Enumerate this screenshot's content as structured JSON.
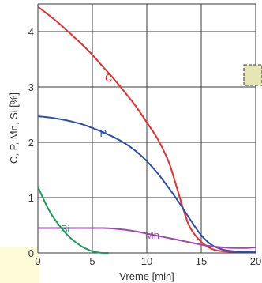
{
  "colors": {
    "C": "#e03030",
    "P": "#2c4ea8",
    "Mn": "#9b4ab0",
    "Si": "#1f9a5a",
    "overlay_box": "#e6e6b4",
    "side_highlight": "#fdfbd8"
  },
  "chart_data": {
    "type": "line",
    "title": "",
    "xlabel": "Vreme [min]",
    "ylabel": "C, P, Mn, Si [%]",
    "xlim": [
      0,
      20
    ],
    "ylim": [
      0,
      4.5
    ],
    "xticks": [
      "0",
      "5",
      "10",
      "15",
      "20"
    ],
    "yticks": [
      "0",
      "1",
      "2",
      "3",
      "4"
    ],
    "grid": true,
    "series": [
      {
        "name": "C",
        "label_at": [
          6.5,
          3.1
        ],
        "x": [
          0,
          1,
          2,
          3,
          4,
          5,
          6,
          7,
          8,
          9,
          10,
          11,
          12,
          12.5,
          13,
          13.5,
          14,
          15,
          16,
          17,
          18,
          19,
          20
        ],
        "y": [
          4.45,
          4.3,
          4.14,
          3.96,
          3.78,
          3.58,
          3.36,
          3.14,
          2.9,
          2.65,
          2.36,
          2.06,
          1.65,
          1.35,
          1.02,
          0.7,
          0.45,
          0.2,
          0.07,
          0.03,
          0.02,
          0.02,
          0.02
        ]
      },
      {
        "name": "P",
        "label_at": [
          6.0,
          2.1
        ],
        "x": [
          0,
          1,
          2,
          3,
          4,
          5,
          6,
          7,
          8,
          9,
          10,
          11,
          12,
          13,
          14,
          15,
          16,
          17,
          18,
          19,
          20
        ],
        "y": [
          2.47,
          2.45,
          2.42,
          2.38,
          2.33,
          2.26,
          2.18,
          2.09,
          1.98,
          1.84,
          1.66,
          1.44,
          1.18,
          0.9,
          0.6,
          0.32,
          0.14,
          0.06,
          0.03,
          0.02,
          0.02
        ]
      },
      {
        "name": "Mn",
        "label_at": [
          10.5,
          0.26
        ],
        "x": [
          0,
          2,
          4,
          6,
          7,
          8,
          9,
          10,
          11,
          12,
          13,
          14,
          15,
          16,
          17,
          18,
          19,
          20
        ],
        "y": [
          0.45,
          0.45,
          0.45,
          0.45,
          0.44,
          0.42,
          0.39,
          0.35,
          0.31,
          0.27,
          0.23,
          0.19,
          0.15,
          0.12,
          0.1,
          0.09,
          0.09,
          0.1
        ]
      },
      {
        "name": "Si",
        "label_at": [
          2.5,
          0.37
        ],
        "x": [
          0,
          0.5,
          1,
          1.5,
          2,
          2.5,
          3,
          3.5,
          4,
          4.5,
          5,
          5.5,
          6,
          6.5
        ],
        "y": [
          1.2,
          0.98,
          0.78,
          0.62,
          0.49,
          0.37,
          0.27,
          0.19,
          0.12,
          0.07,
          0.03,
          0.01,
          0.0,
          0.0
        ]
      }
    ]
  }
}
